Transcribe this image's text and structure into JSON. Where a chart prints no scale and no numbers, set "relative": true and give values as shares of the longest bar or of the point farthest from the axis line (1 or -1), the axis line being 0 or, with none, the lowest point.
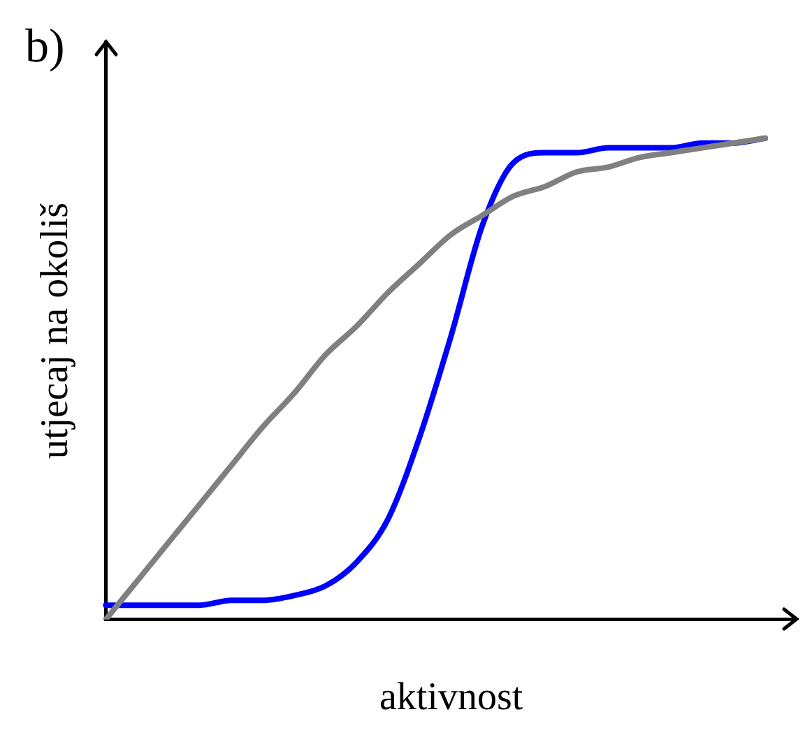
{
  "chart_data": {
    "type": "line",
    "title": "b)",
    "xlabel": "aktivnost",
    "ylabel": "utjecaj na okoliš",
    "relative": true,
    "grid": false,
    "legend": false,
    "marker": "none",
    "categories": [
      null,
      null,
      null,
      null,
      null,
      null,
      null,
      null,
      null,
      null,
      null,
      null,
      null,
      null,
      null,
      null,
      null,
      null,
      null,
      null,
      null,
      null,
      null
    ],
    "series": [
      {
        "color": "#808080",
        "values": [
          0,
          0.08,
          0.16,
          0.24,
          0.32,
          0.4,
          0.47,
          0.55,
          0.61,
          0.68,
          0.74,
          0.8,
          0.84,
          0.88,
          0.9,
          0.93,
          0.94,
          0.96,
          0.97,
          0.98,
          0.99,
          1.0,
          null
        ]
      },
      {
        "color": "#0000ff",
        "values": [
          0.03,
          0.03,
          0.03,
          0.03,
          0.04,
          0.04,
          0.05,
          0.07,
          0.12,
          0.21,
          0.38,
          0.59,
          0.82,
          0.95,
          0.97,
          0.97,
          0.98,
          0.98,
          0.98,
          0.99,
          0.99,
          1.0,
          null
        ]
      }
    ]
  }
}
